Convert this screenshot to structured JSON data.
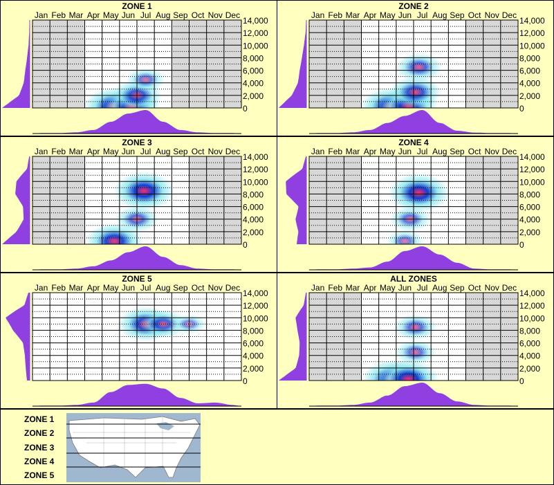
{
  "months": [
    "Jan",
    "Feb",
    "Mar",
    "Apr",
    "May",
    "Jun",
    "Jul",
    "Aug",
    "Sep",
    "Oct",
    "Nov",
    "Dec"
  ],
  "y_ticks": [
    "14,000",
    "12,000",
    "10,000",
    "8,000",
    "6,000",
    "4,000",
    "2,000",
    "0"
  ],
  "colors": {
    "background": "#ffffc0",
    "grey_months": "#d8d8d8",
    "plot_white": "#ffffff",
    "density_fill": "#9040e0",
    "heat_low": "#8ce8f0",
    "heat_mid": "#1040d0",
    "heat_high": "#ff2a6a",
    "line": "#000000"
  },
  "legend": {
    "zones": [
      "ZONE 1",
      "ZONE 2",
      "ZONE 3",
      "ZONE 4",
      "ZONE 5"
    ],
    "map_icon": "usa-map-with-zone-bands"
  },
  "chart_data": [
    {
      "type": "heatmap",
      "title": "ZONE 1",
      "ylim": [
        0,
        14000
      ],
      "grey_months": [
        "Jan",
        "Feb",
        "Mar",
        "Sep",
        "Oct",
        "Nov",
        "Dec"
      ],
      "hotspots": [
        {
          "month": 5.2,
          "elev": 200,
          "intensity": 1.0
        },
        {
          "month": 6.2,
          "elev": 200,
          "intensity": 0.9
        },
        {
          "month": 6.5,
          "elev": 2000,
          "intensity": 0.7
        },
        {
          "month": 7.0,
          "elev": 4500,
          "intensity": 0.4
        }
      ],
      "month_density": [
        0.02,
        0.02,
        0.05,
        0.15,
        0.5,
        0.85,
        1.0,
        0.5,
        0.15,
        0.05,
        0.02,
        0.02
      ],
      "elev_density": [
        1.0,
        0.4,
        0.25,
        0.2,
        0.12,
        0.05,
        0.02,
        0.01
      ]
    },
    {
      "type": "heatmap",
      "title": "ZONE 2",
      "ylim": [
        0,
        14000
      ],
      "grey_months": [
        "Jan",
        "Feb",
        "Mar",
        "Oct",
        "Nov",
        "Dec"
      ],
      "hotspots": [
        {
          "month": 5.2,
          "elev": 200,
          "intensity": 1.0
        },
        {
          "month": 6.2,
          "elev": 200,
          "intensity": 0.95
        },
        {
          "month": 6.6,
          "elev": 2500,
          "intensity": 0.75
        },
        {
          "month": 6.8,
          "elev": 6500,
          "intensity": 0.6
        }
      ],
      "month_density": [
        0.02,
        0.02,
        0.05,
        0.15,
        0.45,
        0.75,
        1.0,
        0.45,
        0.12,
        0.04,
        0.02,
        0.02
      ],
      "elev_density": [
        1.0,
        0.55,
        0.35,
        0.3,
        0.2,
        0.1,
        0.03,
        0.01
      ]
    },
    {
      "type": "heatmap",
      "title": "ZONE 3",
      "ylim": [
        0,
        14000
      ],
      "grey_months": [
        "Jan",
        "Feb",
        "Mar",
        "Oct",
        "Nov",
        "Dec"
      ],
      "hotspots": [
        {
          "month": 5.2,
          "elev": 500,
          "intensity": 0.9
        },
        {
          "month": 6.9,
          "elev": 8500,
          "intensity": 1.0
        },
        {
          "month": 6.5,
          "elev": 4000,
          "intensity": 0.5
        }
      ],
      "month_density": [
        0.02,
        0.02,
        0.05,
        0.15,
        0.4,
        0.75,
        1.0,
        0.55,
        0.2,
        0.05,
        0.02,
        0.02
      ],
      "elev_density": [
        1.0,
        0.5,
        0.25,
        0.3,
        0.65,
        0.55,
        0.1,
        0.02
      ]
    },
    {
      "type": "heatmap",
      "title": "ZONE 4",
      "ylim": [
        0,
        14000
      ],
      "grey_months": [
        "Jan",
        "Feb",
        "Mar",
        "Oct",
        "Nov",
        "Dec"
      ],
      "hotspots": [
        {
          "month": 6.8,
          "elev": 8200,
          "intensity": 1.0
        },
        {
          "month": 6.3,
          "elev": 4000,
          "intensity": 0.45
        },
        {
          "month": 6.0,
          "elev": 500,
          "intensity": 0.35
        }
      ],
      "month_density": [
        0.02,
        0.02,
        0.05,
        0.1,
        0.35,
        0.8,
        1.0,
        0.65,
        0.3,
        0.05,
        0.02,
        0.02
      ],
      "elev_density": [
        0.35,
        0.3,
        0.45,
        0.35,
        0.9,
        0.85,
        0.15,
        0.02
      ]
    },
    {
      "type": "heatmap",
      "title": "ZONE 5",
      "ylim": [
        0,
        14000
      ],
      "grey_months": [],
      "hotspots": [
        {
          "month": 7.0,
          "elev": 9000,
          "intensity": 0.85
        },
        {
          "month": 8.0,
          "elev": 9000,
          "intensity": 0.6
        },
        {
          "month": 9.5,
          "elev": 9000,
          "intensity": 0.25
        }
      ],
      "month_density": [
        0.02,
        0.02,
        0.05,
        0.15,
        0.6,
        0.9,
        0.95,
        0.75,
        0.35,
        0.12,
        0.15,
        0.05
      ],
      "elev_density": [
        0.1,
        0.15,
        0.2,
        0.3,
        0.75,
        1.0,
        0.2,
        0.05
      ]
    },
    {
      "type": "heatmap",
      "title": "ALL ZONES",
      "ylim": [
        0,
        14000
      ],
      "grey_months": [
        "Jan",
        "Feb",
        "Mar",
        "Oct",
        "Nov",
        "Dec"
      ],
      "hotspots": [
        {
          "month": 5.3,
          "elev": 200,
          "intensity": 1.0
        },
        {
          "month": 6.2,
          "elev": 200,
          "intensity": 1.0
        },
        {
          "month": 6.6,
          "elev": 4500,
          "intensity": 0.45
        },
        {
          "month": 6.6,
          "elev": 8500,
          "intensity": 0.5
        }
      ],
      "month_density": [
        0.02,
        0.02,
        0.05,
        0.15,
        0.45,
        0.85,
        1.0,
        0.55,
        0.2,
        0.05,
        0.02,
        0.02
      ],
      "elev_density": [
        1.0,
        0.4,
        0.3,
        0.3,
        0.4,
        0.45,
        0.1,
        0.02
      ]
    }
  ]
}
